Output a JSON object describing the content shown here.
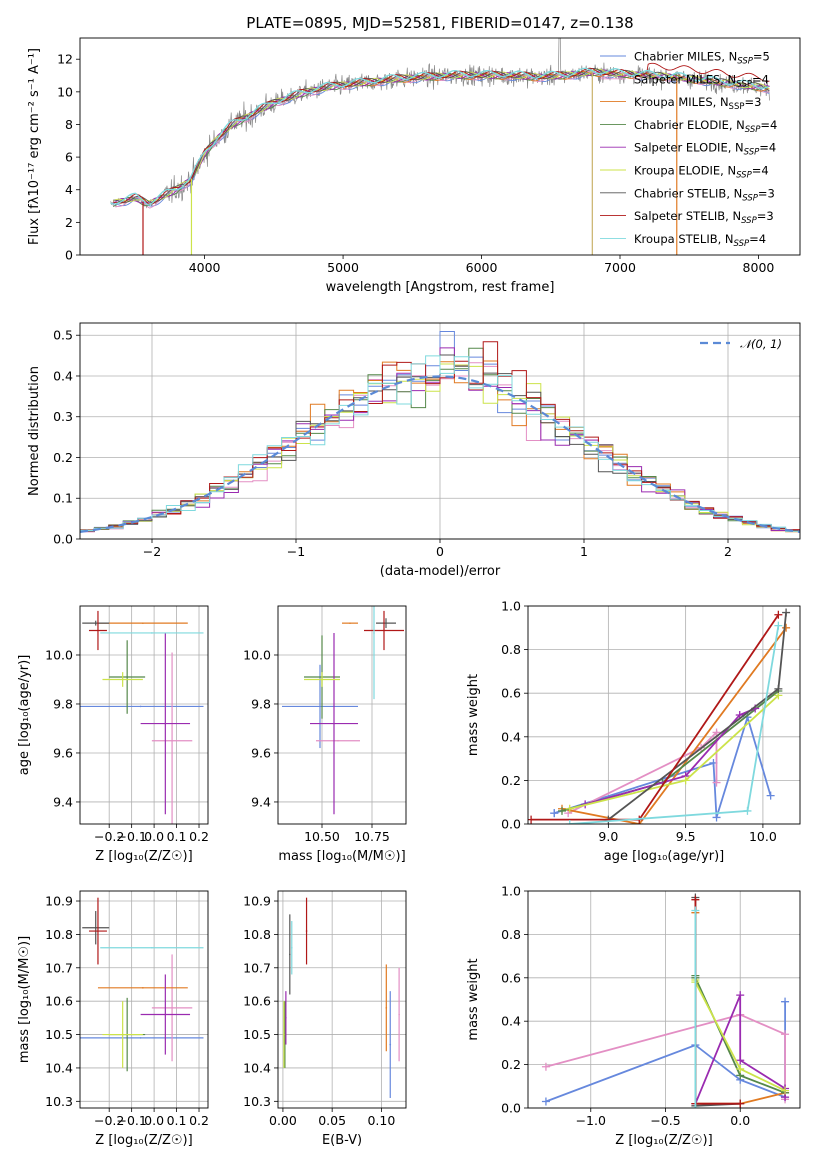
{
  "figure_title": "PLATE=0895, MJD=52581, FIBERID=0147, z=0.138",
  "models": [
    {
      "name": "Chabrier MILES",
      "nssp": "5",
      "color": "#6688dd"
    },
    {
      "name": "Salpeter MILES",
      "nssp": "4",
      "color": "#e38fc4"
    },
    {
      "name": "Kroupa MILES",
      "nssp": "3",
      "color": "#e07a22"
    },
    {
      "name": "Chabrier ELODIE",
      "nssp": "4",
      "color": "#55884a"
    },
    {
      "name": "Salpeter ELODIE",
      "nssp": "4",
      "color": "#9a2bb0"
    },
    {
      "name": "Kroupa ELODIE",
      "nssp": "4",
      "color": "#cce34a"
    },
    {
      "name": "Chabrier STELIB",
      "nssp": "3",
      "color": "#555555"
    },
    {
      "name": "Salpeter STELIB",
      "nssp": "3",
      "color": "#b01818"
    },
    {
      "name": "Kroupa STELIB",
      "nssp": "4",
      "color": "#7fd9de"
    }
  ],
  "chart_data": [
    {
      "id": "spectrum",
      "type": "line",
      "xlabel": "wavelength [Angstrom, rest frame]",
      "ylabel": "Flux [fλ10⁻¹⁷ erg cm⁻² s⁻¹ A⁻¹]",
      "xlim": [
        3100,
        8300
      ],
      "ylim": [
        0,
        13.3
      ],
      "xticks": [
        4000,
        5000,
        6000,
        7000,
        8000
      ],
      "yticks": [
        0,
        2,
        4,
        6,
        8,
        10,
        12
      ],
      "legend_position": "upper right",
      "continuum": {
        "x": [
          3320,
          3500,
          3600,
          3700,
          3800,
          3900,
          4000,
          4100,
          4200,
          4300,
          4400,
          4500,
          4600,
          4700,
          4800,
          4900,
          5000,
          5200,
          5400,
          5600,
          5800,
          6000,
          6200,
          6400,
          6600,
          6800,
          7000,
          7200,
          7400,
          7600,
          7800,
          8000,
          8080
        ],
        "y": [
          3.1,
          3.5,
          3.1,
          3.6,
          4.0,
          4.6,
          6.2,
          7.2,
          8.0,
          8.4,
          8.9,
          9.3,
          9.6,
          9.9,
          10.1,
          10.3,
          10.4,
          10.6,
          10.8,
          10.9,
          11.0,
          11.0,
          11.0,
          10.9,
          11.0,
          11.2,
          11.1,
          11.0,
          10.9,
          10.7,
          10.5,
          10.3,
          10.2
        ]
      },
      "observed_series": "data",
      "observed_color": "#888888"
    },
    {
      "id": "residual_histogram",
      "type": "histogram",
      "xlabel": "(data-model)/error",
      "ylabel": "Normed distribution",
      "xlim": [
        -2.5,
        2.5
      ],
      "ylim": [
        0,
        0.53
      ],
      "xticks": [
        -2,
        -1,
        0,
        1,
        2
      ],
      "yticks": [
        0,
        0.1,
        0.2,
        0.3,
        0.4,
        0.5
      ],
      "reference_label": "𝒩(0, 1)",
      "reference_color": "#5b8ad6",
      "grid": true
    },
    {
      "id": "age_vs_Z",
      "type": "errorbar",
      "xlabel": "Z [log₁₀(Z/Z☉)]",
      "ylabel": "age  [log₁₀(age/yr)]",
      "xlim": [
        -0.33,
        0.24
      ],
      "ylim": [
        9.31,
        10.2
      ],
      "xticks": [
        -0.2,
        -0.1,
        0.0,
        0.1,
        0.2
      ],
      "yticks": [
        9.4,
        9.6,
        9.8,
        10.0
      ],
      "points": [
        {
          "x": -0.06,
          "xerr": 0.28,
          "y": 9.79,
          "yerr": 0.0
        },
        {
          "x": 0.08,
          "xerr": 0.09,
          "y": 9.65,
          "yerr": 0.36
        },
        {
          "x": -0.05,
          "xerr": 0.2,
          "y": 10.13,
          "yerr": 0.0
        },
        {
          "x": -0.12,
          "xerr": 0.08,
          "y": 9.91,
          "yerr": 0.15
        },
        {
          "x": 0.05,
          "xerr": 0.11,
          "y": 9.72,
          "yerr": 0.37
        },
        {
          "x": -0.14,
          "xerr": 0.09,
          "y": 9.9,
          "yerr": 0.03
        },
        {
          "x": -0.26,
          "xerr": 0.06,
          "y": 10.13,
          "yerr": 0.01
        },
        {
          "x": -0.25,
          "xerr": 0.04,
          "y": 10.1,
          "yerr": 0.08
        },
        {
          "x": -0.01,
          "xerr": 0.23,
          "y": 10.09,
          "yerr": 0.0
        }
      ]
    },
    {
      "id": "age_vs_mass",
      "type": "errorbar",
      "xlabel": "mass [log₁₀(M/M☉)]",
      "ylabel": "",
      "xlim": [
        10.28,
        10.92
      ],
      "ylim": [
        9.31,
        10.2
      ],
      "xticks": [
        10.5,
        10.75
      ],
      "yticks": [
        9.4,
        9.6,
        9.8,
        10.0
      ],
      "points": [
        {
          "x": 10.49,
          "xerr": 0.19,
          "y": 9.79,
          "yerr": 0.17
        },
        {
          "x": 10.58,
          "xerr": 0.11,
          "y": 9.65,
          "yerr": 0.0
        },
        {
          "x": 10.64,
          "xerr": 0.04,
          "y": 10.13,
          "yerr": 0.0
        },
        {
          "x": 10.5,
          "xerr": 0.09,
          "y": 9.91,
          "yerr": 0.17
        },
        {
          "x": 10.56,
          "xerr": 0.12,
          "y": 9.72,
          "yerr": 0.37
        },
        {
          "x": 10.5,
          "xerr": 0.09,
          "y": 9.9,
          "yerr": 0.03
        },
        {
          "x": 10.82,
          "xerr": 0.05,
          "y": 10.13,
          "yerr": 0.02
        },
        {
          "x": 10.81,
          "xerr": 0.1,
          "y": 10.1,
          "yerr": 0.08
        },
        {
          "x": 10.76,
          "xerr": 0.0,
          "y": 10.09,
          "yerr": 0.27
        }
      ]
    },
    {
      "id": "mass_weight_vs_age",
      "type": "line",
      "xlabel": "age  [log₁₀(age/yr)]",
      "ylabel": "mass weight",
      "xlim": [
        8.48,
        10.24
      ],
      "ylim": [
        0,
        1.0
      ],
      "xticks": [
        9.0,
        9.5,
        10.0
      ],
      "yticks": [
        0.0,
        0.2,
        0.4,
        0.6,
        0.8,
        1.0
      ],
      "series": [
        {
          "x": [
            8.65,
            8.65,
            9.68,
            9.7,
            9.9,
            10.05
          ],
          "y": [
            0.05,
            0.05,
            0.28,
            0.03,
            0.49,
            0.13
          ]
        },
        {
          "x": [
            8.74,
            9.6,
            9.7,
            9.7
          ],
          "y": [
            0.05,
            0.35,
            0.42,
            0.19
          ]
        },
        {
          "x": [
            8.7,
            9.2,
            10.15
          ],
          "y": [
            0.07,
            0.0,
            0.9
          ]
        },
        {
          "x": [
            8.7,
            9.35,
            10.1
          ],
          "y": [
            0.06,
            0.19,
            0.61
          ]
        },
        {
          "x": [
            8.85,
            9.5,
            9.85,
            9.95
          ],
          "y": [
            0.09,
            0.22,
            0.5,
            0.53
          ]
        },
        {
          "x": [
            8.75,
            9.5,
            10.1
          ],
          "y": [
            0.07,
            0.2,
            0.59
          ]
        },
        {
          "x": [
            9.0,
            10.1,
            10.15
          ],
          "y": [
            0.02,
            0.62,
            0.97
          ]
        },
        {
          "x": [
            8.5,
            9.2,
            10.1
          ],
          "y": [
            0.02,
            0.02,
            0.96
          ]
        },
        {
          "x": [
            8.75,
            9.9,
            10.1
          ],
          "y": [
            0.0,
            0.06,
            0.91
          ]
        }
      ]
    },
    {
      "id": "mass_vs_Z",
      "type": "errorbar",
      "xlabel": "Z [log₁₀(Z/Z☉)]",
      "ylabel": "mass [log₁₀(M/M☉)]",
      "xlim": [
        -0.33,
        0.24
      ],
      "ylim": [
        10.28,
        10.93
      ],
      "xticks": [
        -0.2,
        -0.1,
        0.0,
        0.1,
        0.2
      ],
      "yticks": [
        10.3,
        10.4,
        10.5,
        10.6,
        10.7,
        10.8,
        10.9
      ],
      "points": [
        {
          "x": -0.06,
          "xerr": 0.28,
          "y": 10.49,
          "yerr": 0.0
        },
        {
          "x": 0.08,
          "xerr": 0.09,
          "y": 10.58,
          "yerr": 0.16
        },
        {
          "x": -0.05,
          "xerr": 0.2,
          "y": 10.64,
          "yerr": 0.0
        },
        {
          "x": -0.12,
          "xerr": 0.08,
          "y": 10.5,
          "yerr": 0.11
        },
        {
          "x": 0.05,
          "xerr": 0.11,
          "y": 10.56,
          "yerr": 0.12
        },
        {
          "x": -0.14,
          "xerr": 0.09,
          "y": 10.5,
          "yerr": 0.1
        },
        {
          "x": -0.26,
          "xerr": 0.06,
          "y": 10.82,
          "yerr": 0.05
        },
        {
          "x": -0.25,
          "xerr": 0.04,
          "y": 10.81,
          "yerr": 0.1
        },
        {
          "x": -0.01,
          "xerr": 0.23,
          "y": 10.76,
          "yerr": 0.0
        }
      ]
    },
    {
      "id": "mass_vs_EBV",
      "type": "errorbar",
      "xlabel": "E(B-V)",
      "ylabel": "",
      "xlim": [
        -0.005,
        0.125
      ],
      "ylim": [
        10.28,
        10.93
      ],
      "xticks": [
        0.0,
        0.05,
        0.1
      ],
      "yticks": [
        10.3,
        10.4,
        10.5,
        10.6,
        10.7,
        10.8,
        10.9
      ],
      "points": [
        {
          "x": 0.109,
          "y": 10.47,
          "yerr": 0.16
        },
        {
          "x": 0.118,
          "y": 10.56,
          "yerr": 0.14
        },
        {
          "x": 0.105,
          "y": 10.58,
          "yerr": 0.13
        },
        {
          "x": 0.002,
          "y": 10.5,
          "yerr": 0.1
        },
        {
          "x": 0.003,
          "y": 10.55,
          "yerr": 0.08
        },
        {
          "x": 0.001,
          "y": 10.5,
          "yerr": 0.1
        },
        {
          "x": 0.007,
          "y": 10.74,
          "yerr": 0.12
        },
        {
          "x": 0.024,
          "y": 10.81,
          "yerr": 0.1
        },
        {
          "x": 0.009,
          "y": 10.76,
          "yerr": 0.08
        }
      ]
    },
    {
      "id": "mass_weight_vs_Z",
      "type": "line",
      "xlabel": "Z [log₁₀(Z/Z☉)]",
      "ylabel": "mass weight",
      "xlim": [
        -1.42,
        0.4
      ],
      "ylim": [
        0,
        1.0
      ],
      "xticks": [
        -1.0,
        -0.5,
        0.0
      ],
      "yticks": [
        0.0,
        0.2,
        0.4,
        0.6,
        0.8,
        1.0
      ],
      "series": [
        {
          "x": [
            -1.3,
            -0.3,
            0.0,
            0.3,
            0.3
          ],
          "y": [
            0.03,
            0.29,
            0.13,
            0.05,
            0.49
          ]
        },
        {
          "x": [
            -1.3,
            0.0,
            0.3,
            0.3
          ],
          "y": [
            0.19,
            0.43,
            0.34,
            0.04
          ]
        },
        {
          "x": [
            -0.3,
            -0.3,
            0.0,
            0.3
          ],
          "y": [
            0.9,
            0.02,
            0.02,
            0.07
          ]
        },
        {
          "x": [
            -0.3,
            -0.3,
            0.0,
            0.3
          ],
          "y": [
            0.61,
            0.6,
            0.15,
            0.07
          ]
        },
        {
          "x": [
            -0.3,
            0.0,
            0.0,
            0.3,
            0.3
          ],
          "y": [
            0.02,
            0.52,
            0.22,
            0.09,
            0.05
          ]
        },
        {
          "x": [
            -0.3,
            -0.3,
            0.0,
            0.3
          ],
          "y": [
            0.59,
            0.58,
            0.18,
            0.08
          ]
        },
        {
          "x": [
            -0.3,
            -0.3,
            0.0
          ],
          "y": [
            0.97,
            0.01,
            0.02
          ]
        },
        {
          "x": [
            -0.3,
            -0.3,
            0.0
          ],
          "y": [
            0.96,
            0.02,
            0.02
          ]
        },
        {
          "x": [
            -0.3,
            -0.3
          ],
          "y": [
            0.91,
            0.0
          ]
        }
      ]
    }
  ]
}
